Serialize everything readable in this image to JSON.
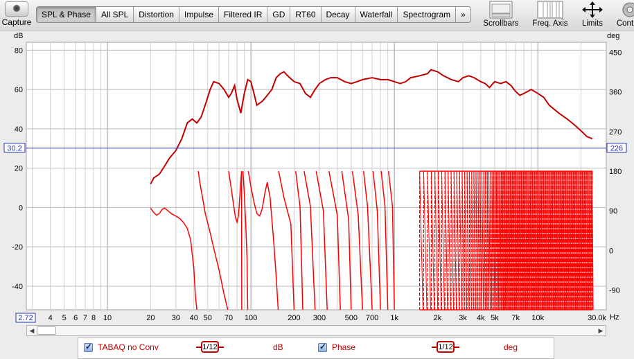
{
  "toolbar": {
    "capture_label": "Capture",
    "tabs": [
      {
        "label": "SPL & Phase",
        "active": true
      },
      {
        "label": "All SPL"
      },
      {
        "label": "Distortion"
      },
      {
        "label": "Impulse"
      },
      {
        "label": "Filtered IR"
      },
      {
        "label": "GD"
      },
      {
        "label": "RT60"
      },
      {
        "label": "Decay"
      },
      {
        "label": "Waterfall"
      },
      {
        "label": "Spectrogram"
      }
    ],
    "more_label": "»",
    "scrollbars_label": "Scrollbars",
    "freq_axis_label": "Freq. Axis",
    "limits_label": "Limits",
    "controls_label": "Cont"
  },
  "chart_data": {
    "type": "line",
    "xscale": "log",
    "xlim": [
      2.72,
      30000
    ],
    "ylim_left": [
      -52,
      84
    ],
    "ylim_right": [
      -135,
      473
    ],
    "left_axis_unit": "dB",
    "right_axis_unit": "deg",
    "x_unit": "Hz",
    "x_ticks": [
      "2.72",
      "4",
      "5",
      "6",
      "7",
      "8",
      "10",
      "20",
      "30",
      "40",
      "50",
      "70",
      "100",
      "200",
      "300",
      "500",
      "700",
      "1k",
      "2k",
      "3k",
      "4k",
      "5k",
      "7k",
      "10k",
      "30.0k"
    ],
    "y_ticks_left": [
      "80",
      "60",
      "40",
      "20",
      "0",
      "-20",
      "-40"
    ],
    "y_ticks_right": [
      "450",
      "360",
      "270",
      "180",
      "90",
      "0",
      "-90"
    ],
    "cursor": {
      "left_value": "30.2",
      "right_value": "226"
    },
    "series": [
      {
        "name": "TABAQ no Conv",
        "axis": "left",
        "color": "#c00000",
        "points": [
          [
            20,
            12
          ],
          [
            21,
            15
          ],
          [
            23,
            17
          ],
          [
            25,
            21
          ],
          [
            27,
            25
          ],
          [
            30,
            29
          ],
          [
            33,
            35
          ],
          [
            36,
            43
          ],
          [
            39,
            45
          ],
          [
            42,
            43
          ],
          [
            45,
            46
          ],
          [
            48,
            52
          ],
          [
            52,
            60
          ],
          [
            55,
            64
          ],
          [
            60,
            63
          ],
          [
            65,
            60
          ],
          [
            70,
            56
          ],
          [
            73,
            58
          ],
          [
            77,
            62
          ],
          [
            80,
            55
          ],
          [
            85,
            48
          ],
          [
            90,
            58
          ],
          [
            95,
            65
          ],
          [
            100,
            64
          ],
          [
            105,
            58
          ],
          [
            110,
            52
          ],
          [
            120,
            54
          ],
          [
            130,
            57
          ],
          [
            140,
            60
          ],
          [
            150,
            66
          ],
          [
            160,
            68
          ],
          [
            170,
            69
          ],
          [
            180,
            67
          ],
          [
            200,
            64
          ],
          [
            220,
            63
          ],
          [
            240,
            58
          ],
          [
            260,
            56
          ],
          [
            280,
            60
          ],
          [
            300,
            63
          ],
          [
            330,
            65
          ],
          [
            360,
            66
          ],
          [
            400,
            66
          ],
          [
            450,
            64
          ],
          [
            500,
            63
          ],
          [
            550,
            64
          ],
          [
            600,
            65
          ],
          [
            700,
            66
          ],
          [
            800,
            65
          ],
          [
            900,
            65
          ],
          [
            1000,
            64
          ],
          [
            1100,
            63
          ],
          [
            1200,
            64
          ],
          [
            1300,
            66
          ],
          [
            1500,
            67
          ],
          [
            1700,
            68
          ],
          [
            1800,
            70
          ],
          [
            2000,
            69
          ],
          [
            2200,
            67
          ],
          [
            2500,
            65
          ],
          [
            2800,
            64
          ],
          [
            3000,
            66
          ],
          [
            3300,
            67
          ],
          [
            3600,
            66
          ],
          [
            4000,
            64
          ],
          [
            4300,
            63
          ],
          [
            4600,
            61
          ],
          [
            5000,
            64
          ],
          [
            5500,
            63
          ],
          [
            6000,
            64
          ],
          [
            6500,
            62
          ],
          [
            7000,
            59
          ],
          [
            7500,
            57
          ],
          [
            8000,
            58
          ],
          [
            9000,
            60
          ],
          [
            10000,
            58
          ],
          [
            11000,
            56
          ],
          [
            12000,
            52
          ],
          [
            14000,
            48
          ],
          [
            16000,
            45
          ],
          [
            18000,
            42
          ],
          [
            20000,
            39
          ],
          [
            22000,
            36
          ],
          [
            24000,
            35
          ]
        ]
      },
      {
        "name": "Phase",
        "axis": "right",
        "color": "#ff0000",
        "points": [
          [
            20,
            96
          ],
          [
            21,
            86
          ],
          [
            22,
            80
          ],
          [
            23,
            84
          ],
          [
            24,
            93
          ],
          [
            25,
            96
          ],
          [
            26,
            92
          ],
          [
            28,
            83
          ],
          [
            30,
            78
          ],
          [
            32,
            72
          ],
          [
            34,
            63
          ],
          [
            36,
            50
          ],
          [
            38,
            24
          ],
          [
            40,
            -40
          ],
          [
            41,
            -100
          ],
          [
            42,
            -135
          ],
          [
            43,
            180
          ],
          [
            44,
            155
          ],
          [
            46,
            120
          ],
          [
            48,
            85
          ],
          [
            52,
            40
          ],
          [
            56,
            -5
          ],
          [
            60,
            -45
          ],
          [
            65,
            -100
          ],
          [
            69,
            -135
          ],
          [
            70,
            180
          ],
          [
            73,
            140
          ],
          [
            76,
            100
          ],
          [
            78,
            75
          ],
          [
            80,
            64
          ],
          [
            82,
            80
          ],
          [
            84,
            130
          ],
          [
            86,
            180
          ],
          [
            86.3,
            -135
          ],
          [
            88,
            180
          ],
          [
            90,
            130
          ],
          [
            92,
            60
          ],
          [
            94,
            -20
          ],
          [
            95,
            -135
          ],
          [
            96,
            180
          ],
          [
            100,
            145
          ],
          [
            105,
            110
          ],
          [
            110,
            84
          ],
          [
            115,
            78
          ],
          [
            120,
            95
          ],
          [
            125,
            130
          ],
          [
            130,
            155
          ],
          [
            136,
            120
          ],
          [
            140,
            70
          ],
          [
            145,
            10
          ],
          [
            150,
            -60
          ],
          [
            155,
            -135
          ],
          [
            156,
            180
          ],
          [
            170,
            120
          ],
          [
            190,
            60
          ],
          [
            200,
            -135
          ],
          [
            205,
            180
          ],
          [
            220,
            100
          ],
          [
            230,
            -135
          ],
          [
            235,
            180
          ],
          [
            260,
            100
          ],
          [
            280,
            -135
          ],
          [
            285,
            180
          ],
          [
            320,
            90
          ],
          [
            340,
            -135
          ],
          [
            350,
            180
          ],
          [
            400,
            80
          ],
          [
            420,
            -135
          ],
          [
            430,
            180
          ],
          [
            480,
            70
          ],
          [
            500,
            -135
          ],
          [
            510,
            180
          ],
          [
            560,
            80
          ],
          [
            600,
            -135
          ],
          [
            610,
            180
          ],
          [
            650,
            100
          ],
          [
            700,
            -135
          ],
          [
            710,
            180
          ],
          [
            760,
            90
          ],
          [
            800,
            -135
          ],
          [
            810,
            180
          ],
          [
            860,
            100
          ],
          [
            900,
            -135
          ],
          [
            910,
            180
          ],
          [
            970,
            100
          ],
          [
            1000,
            -135
          ]
        ]
      }
    ],
    "phase_wrap_region": {
      "x_start": 1500,
      "x_end": 24000,
      "y_top": 180,
      "y_bottom": -135
    }
  },
  "legend": {
    "items": [
      {
        "checked": true,
        "label": "TABAQ no Conv",
        "smoothing": "1/12",
        "unit": "dB"
      },
      {
        "checked": true,
        "label": "Phase",
        "smoothing": "1/12",
        "unit": "deg"
      }
    ]
  }
}
